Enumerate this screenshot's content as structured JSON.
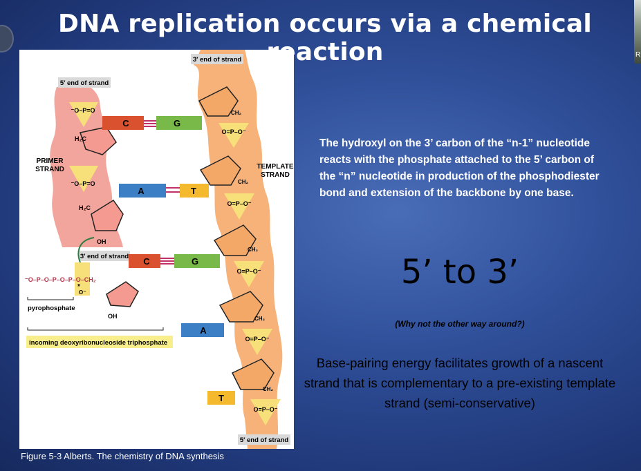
{
  "slide": {
    "title": "DNA replication occurs via a chemical reaction",
    "paragraph1": "The hydroxyl on the 3’ carbon of the “n-1” nucleotide reacts with the phosphate attached to the 5’ carbon of the “n” nucleotide in production of the phosphodiester bond and extension of the backbone by one base.",
    "direction": "5’ to 3’",
    "question": "(Why not the other way around?)",
    "paragraph2": "Base-pairing energy facilitates growth of a nascent strand that is complementary to a pre-existing template strand (semi-conservative)",
    "caption": "Figure 5-3 Alberts. The chemistry of DNA synthesis",
    "webcam_label": "R"
  },
  "figure": {
    "labels": {
      "end5_primer": "5′ end of strand",
      "end3_template": "3′ end of strand",
      "end3_primer": "3′ end of strand",
      "end5_template": "5′ end of strand",
      "primer_strand_1": "PRIMER",
      "primer_strand_2": "STRAND",
      "template_strand_1": "TEMPLATE",
      "template_strand_2": "STRAND",
      "pyrophosphate": "pyrophosphate",
      "incoming": "incoming deoxyribonucleoside triphosphate"
    },
    "bases": {
      "c1": "C",
      "g1": "G",
      "a1": "A",
      "t1": "T",
      "c2": "C",
      "g2": "G",
      "a2": "A",
      "t2": "T"
    },
    "chem": {
      "o": "O",
      "phosphate": "O=P–O⁻",
      "phosphate_left": "⁻O–P=O",
      "ch2": "CH₂",
      "h2c": "H₂C",
      "oh": "OH",
      "triphosphate": "⁻O–P–O–P–O–P–O–CH₂",
      "o_minus": "O⁻",
      "star": "*"
    },
    "colors": {
      "primer_backbone": "#f2a59c",
      "template_backbone": "#f7b27a",
      "phosphate_fill": "#f7e07a",
      "sugar_fill": "#f49a90",
      "sugar_template_fill": "#f4a868",
      "C": "#d9512e",
      "G": "#79b94a",
      "A": "#3c7fc4",
      "T": "#f4b92c",
      "label_bg": "#d9d9d9",
      "incoming_bg": "#f8ef8c"
    }
  }
}
